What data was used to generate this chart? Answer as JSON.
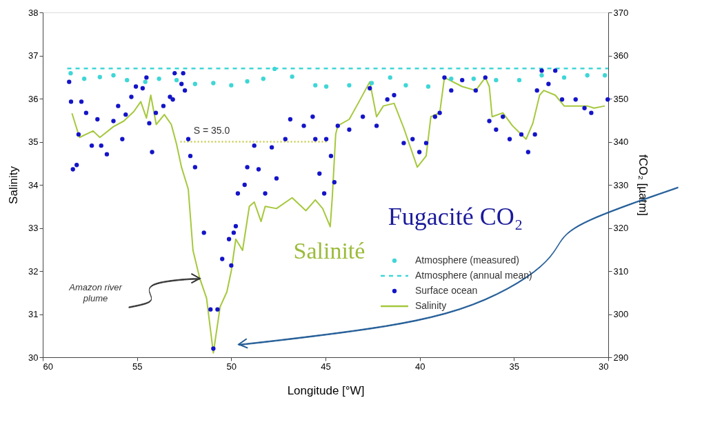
{
  "chart_data": {
    "type": "scatter",
    "xlabel": "Longitude [°W]",
    "ylabel": "Salinity",
    "y2label": "fCO₂ [µatm]",
    "xlim": [
      60,
      30
    ],
    "xticks": [
      60,
      55,
      50,
      45,
      40,
      35,
      30
    ],
    "ylim": [
      30,
      38
    ],
    "yticks": [
      30,
      31,
      32,
      33,
      34,
      35,
      36,
      37,
      38
    ],
    "y2lim": [
      290,
      370
    ],
    "y2ticks": [
      290,
      300,
      310,
      320,
      330,
      340,
      350,
      360,
      370
    ],
    "legend": "bottom right",
    "series": [
      {
        "name": "Atmosphere (measured)",
        "type": "scatter",
        "axis": "y2",
        "color": "#3fd6d6",
        "marker": "circle",
        "x": [
          58.52,
          57.8,
          56.97,
          56.25,
          55.53,
          54.56,
          53.83,
          52.9,
          51.92,
          50.95,
          50.0,
          49.15,
          48.3,
          47.7,
          46.77,
          45.54,
          44.96,
          43.74,
          42.55,
          41.57,
          40.74,
          39.55,
          38.33,
          37.14,
          35.95,
          34.72,
          33.53,
          32.34,
          31.11,
          30.18
        ],
        "values": [
          355.9,
          354.6,
          355.0,
          355.4,
          354.3,
          353.9,
          354.6,
          354.3,
          353.4,
          353.6,
          353.1,
          354.0,
          354.6,
          356.9,
          355.1,
          353.1,
          352.8,
          353.1,
          353.6,
          354.9,
          353.1,
          352.8,
          354.6,
          354.6,
          354.3,
          354.3,
          355.4,
          354.9,
          355.4,
          355.4
        ]
      },
      {
        "name": "Atmosphere (annual mean)",
        "type": "line",
        "axis": "y2",
        "color": "#3fd6d6",
        "line_style": "dashed",
        "x": [
          58.7,
          30
        ],
        "values": [
          357,
          357
        ]
      },
      {
        "name": "Surface ocean",
        "type": "scatter",
        "axis": "y2",
        "color": "#1414c8",
        "marker": "circle",
        "x": [
          58.6,
          58.5,
          58.4,
          58.2,
          58.1,
          57.95,
          57.7,
          57.4,
          57.1,
          56.9,
          56.6,
          56.25,
          56.0,
          55.78,
          55.6,
          55.3,
          55.06,
          54.7,
          54.5,
          54.35,
          54.2,
          54.0,
          53.6,
          53.25,
          53.1,
          53.0,
          52.64,
          52.55,
          52.46,
          52.28,
          52.17,
          51.92,
          51.45,
          51.1,
          50.95,
          50.73,
          50.48,
          50.12,
          50.0,
          49.87,
          49.76,
          49.65,
          49.29,
          49.15,
          48.78,
          48.55,
          48.2,
          47.85,
          47.6,
          47.13,
          46.87,
          46.15,
          45.68,
          45.54,
          45.32,
          45.07,
          44.96,
          44.71,
          44.53,
          44.35,
          43.74,
          43.02,
          42.65,
          42.29,
          41.72,
          41.36,
          40.85,
          40.38,
          40.02,
          39.66,
          39.19,
          38.94,
          38.69,
          38.33,
          37.75,
          37.03,
          36.52,
          36.31,
          35.95,
          35.59,
          35.23,
          34.61,
          34.25,
          33.89,
          33.78,
          33.53,
          33.17,
          32.81,
          32.45,
          31.73,
          31.26,
          30.9,
          30.03
        ],
        "values": [
          353.9,
          349.3,
          333.6,
          334.6,
          341.7,
          349.3,
          346.7,
          339.1,
          345.2,
          339.1,
          337.1,
          344.8,
          348.3,
          340.6,
          346.3,
          350.4,
          352.8,
          352.4,
          354.9,
          344.3,
          337.6,
          346.7,
          348.3,
          350.4,
          349.8,
          355.9,
          353.4,
          355.9,
          351.9,
          340.6,
          336.7,
          334.1,
          318.9,
          301.1,
          292.0,
          301.1,
          312.8,
          317.4,
          311.3,
          318.9,
          320.4,
          328.0,
          330.0,
          334.1,
          339.1,
          333.6,
          328.0,
          338.7,
          331.5,
          340.6,
          345.2,
          343.7,
          345.8,
          340.6,
          332.6,
          328.0,
          340.6,
          336.7,
          330.6,
          343.7,
          342.8,
          345.8,
          352.4,
          343.7,
          349.8,
          350.8,
          339.7,
          340.6,
          337.6,
          339.7,
          345.8,
          346.7,
          354.9,
          351.9,
          354.3,
          351.9,
          354.9,
          344.8,
          342.8,
          345.8,
          340.6,
          341.7,
          337.6,
          341.7,
          351.9,
          356.5,
          353.4,
          356.5,
          349.8,
          349.8,
          347.8,
          346.7,
          349.8
        ]
      },
      {
        "name": "Salinity",
        "type": "line",
        "color": "#a5c83c",
        "x": [
          58.45,
          58.05,
          57.33,
          56.97,
          56.25,
          55.7,
          55.17,
          54.8,
          54.5,
          54.27,
          53.98,
          53.55,
          53.18,
          52.9,
          52.64,
          52.28,
          52.03,
          51.67,
          51.31,
          50.95,
          50.59,
          50.23,
          50.0,
          49.76,
          49.4,
          49.04,
          48.78,
          48.42,
          48.2,
          47.6,
          46.77,
          46.04,
          45.54,
          45.15,
          44.75,
          44.64,
          44.46,
          44.35,
          43.74,
          43.27,
          42.65,
          42.29,
          41.93,
          41.36,
          40.85,
          40.13,
          39.66,
          39.41,
          38.94,
          38.69,
          37.75,
          37.03,
          36.52,
          36.31,
          36.16,
          35.59,
          35.08,
          34.36,
          34.0,
          33.64,
          33.42,
          32.81,
          32.34,
          31.11,
          30.75,
          30.18
        ],
        "values": [
          35.66,
          35.1,
          35.25,
          35.1,
          35.35,
          35.48,
          35.7,
          35.93,
          35.55,
          36.08,
          35.4,
          35.63,
          35.4,
          34.94,
          34.41,
          33.9,
          32.48,
          31.83,
          31.37,
          30.1,
          31.17,
          31.52,
          32.0,
          32.74,
          32.48,
          33.5,
          33.6,
          33.15,
          33.5,
          33.45,
          33.7,
          33.4,
          33.65,
          33.45,
          33.03,
          33.71,
          35.17,
          35.37,
          35.52,
          35.89,
          36.39,
          35.58,
          35.83,
          35.89,
          35.32,
          34.41,
          34.67,
          35.58,
          35.67,
          36.49,
          36.28,
          36.19,
          36.49,
          36.28,
          35.58,
          35.67,
          35.37,
          35.06,
          35.43,
          36.08,
          36.19,
          36.08,
          35.83,
          35.83,
          35.78,
          35.83
        ]
      },
      {
        "type": "line",
        "color": "#c8cc50",
        "line_style": "dotted",
        "x": [
          52.7,
          44.9
        ],
        "values": [
          35,
          35
        ]
      }
    ],
    "annotations": [
      "S = 35.0",
      "Amazon river plume",
      "Fugacité CO₂",
      "Salinité"
    ]
  }
}
